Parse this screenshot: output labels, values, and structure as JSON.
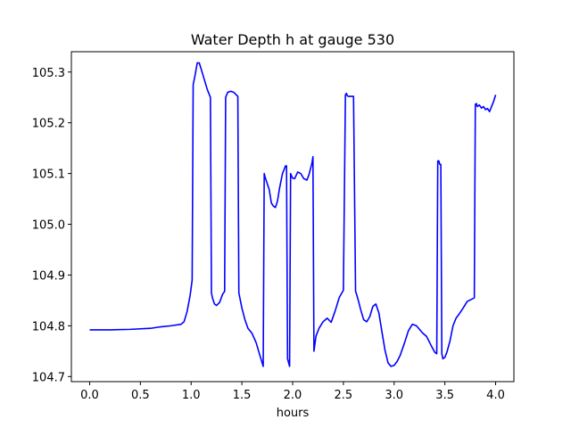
{
  "chart_data": {
    "type": "line",
    "title": "Water Depth h at gauge 530",
    "xlabel": "hours",
    "ylabel": "",
    "xlim": [
      -0.18,
      4.18
    ],
    "ylim": [
      104.69,
      105.34
    ],
    "xticks": [
      0.0,
      0.5,
      1.0,
      1.5,
      2.0,
      2.5,
      3.0,
      3.5,
      4.0
    ],
    "xtick_labels": [
      "0.0",
      "0.5",
      "1.0",
      "1.5",
      "2.0",
      "2.5",
      "3.0",
      "3.5",
      "4.0"
    ],
    "yticks": [
      104.7,
      104.8,
      104.9,
      105.0,
      105.1,
      105.2,
      105.3
    ],
    "ytick_labels": [
      "104.7",
      "104.8",
      "104.9",
      "105.0",
      "105.1",
      "105.2",
      "105.3"
    ],
    "grid": false,
    "series": [
      {
        "color": "#0000ff",
        "x": [
          0.0,
          0.2,
          0.4,
          0.6,
          0.7,
          0.8,
          0.9,
          0.93,
          0.96,
          0.99,
          1.01,
          1.02,
          1.04,
          1.06,
          1.08,
          1.1,
          1.13,
          1.16,
          1.19,
          1.2,
          1.21,
          1.23,
          1.25,
          1.28,
          1.31,
          1.33,
          1.34,
          1.36,
          1.39,
          1.42,
          1.46,
          1.47,
          1.48,
          1.5,
          1.53,
          1.56,
          1.6,
          1.64,
          1.68,
          1.71,
          1.72,
          1.73,
          1.75,
          1.77,
          1.79,
          1.81,
          1.83,
          1.85,
          1.87,
          1.9,
          1.93,
          1.94,
          1.95,
          1.97,
          1.98,
          1.99,
          2.0,
          2.02,
          2.05,
          2.08,
          2.11,
          2.14,
          2.16,
          2.19,
          2.2,
          2.21,
          2.23,
          2.26,
          2.3,
          2.34,
          2.38,
          2.42,
          2.46,
          2.5,
          2.52,
          2.53,
          2.54,
          2.55,
          2.57,
          2.6,
          2.62,
          2.63,
          2.65,
          2.67,
          2.7,
          2.73,
          2.76,
          2.79,
          2.82,
          2.85,
          2.88,
          2.91,
          2.94,
          2.97,
          3.0,
          3.03,
          3.06,
          3.1,
          3.14,
          3.18,
          3.22,
          3.25,
          3.28,
          3.32,
          3.36,
          3.4,
          3.42,
          3.43,
          3.44,
          3.45,
          3.46,
          3.47,
          3.48,
          3.5,
          3.52,
          3.55,
          3.58,
          3.61,
          3.64,
          3.68,
          3.72,
          3.76,
          3.79,
          3.8,
          3.81,
          3.82,
          3.84,
          3.86,
          3.88,
          3.9,
          3.92,
          3.94,
          3.96,
          3.98,
          4.0
        ],
        "y": [
          104.792,
          104.792,
          104.793,
          104.795,
          104.798,
          104.8,
          104.803,
          104.808,
          104.828,
          104.86,
          104.89,
          105.275,
          105.295,
          105.318,
          105.318,
          105.305,
          105.285,
          105.265,
          105.25,
          104.865,
          104.855,
          104.843,
          104.84,
          104.846,
          104.862,
          104.868,
          105.25,
          105.26,
          105.262,
          105.26,
          105.252,
          104.865,
          104.855,
          104.835,
          104.812,
          104.795,
          104.785,
          104.767,
          104.74,
          104.72,
          105.1,
          105.092,
          105.08,
          105.068,
          105.042,
          105.036,
          105.033,
          105.045,
          105.07,
          105.1,
          105.115,
          105.115,
          104.735,
          104.72,
          105.1,
          105.095,
          105.091,
          105.09,
          105.103,
          105.1,
          105.09,
          105.087,
          105.097,
          105.12,
          105.133,
          104.75,
          104.78,
          104.795,
          104.808,
          104.815,
          104.807,
          104.83,
          104.856,
          104.87,
          105.255,
          105.258,
          105.253,
          105.252,
          105.252,
          105.252,
          104.868,
          104.862,
          104.848,
          104.832,
          104.812,
          104.808,
          104.818,
          104.838,
          104.843,
          104.825,
          104.788,
          104.752,
          104.727,
          104.72,
          104.722,
          104.73,
          104.742,
          104.765,
          104.79,
          104.803,
          104.8,
          104.793,
          104.786,
          104.779,
          104.763,
          104.748,
          104.745,
          105.125,
          105.125,
          105.118,
          105.118,
          104.745,
          104.735,
          104.738,
          104.748,
          104.77,
          104.8,
          104.815,
          104.823,
          104.835,
          104.848,
          104.852,
          104.855,
          105.236,
          105.238,
          105.232,
          105.235,
          105.229,
          105.232,
          105.226,
          105.228,
          105.222,
          105.232,
          105.242,
          105.255
        ]
      }
    ]
  }
}
